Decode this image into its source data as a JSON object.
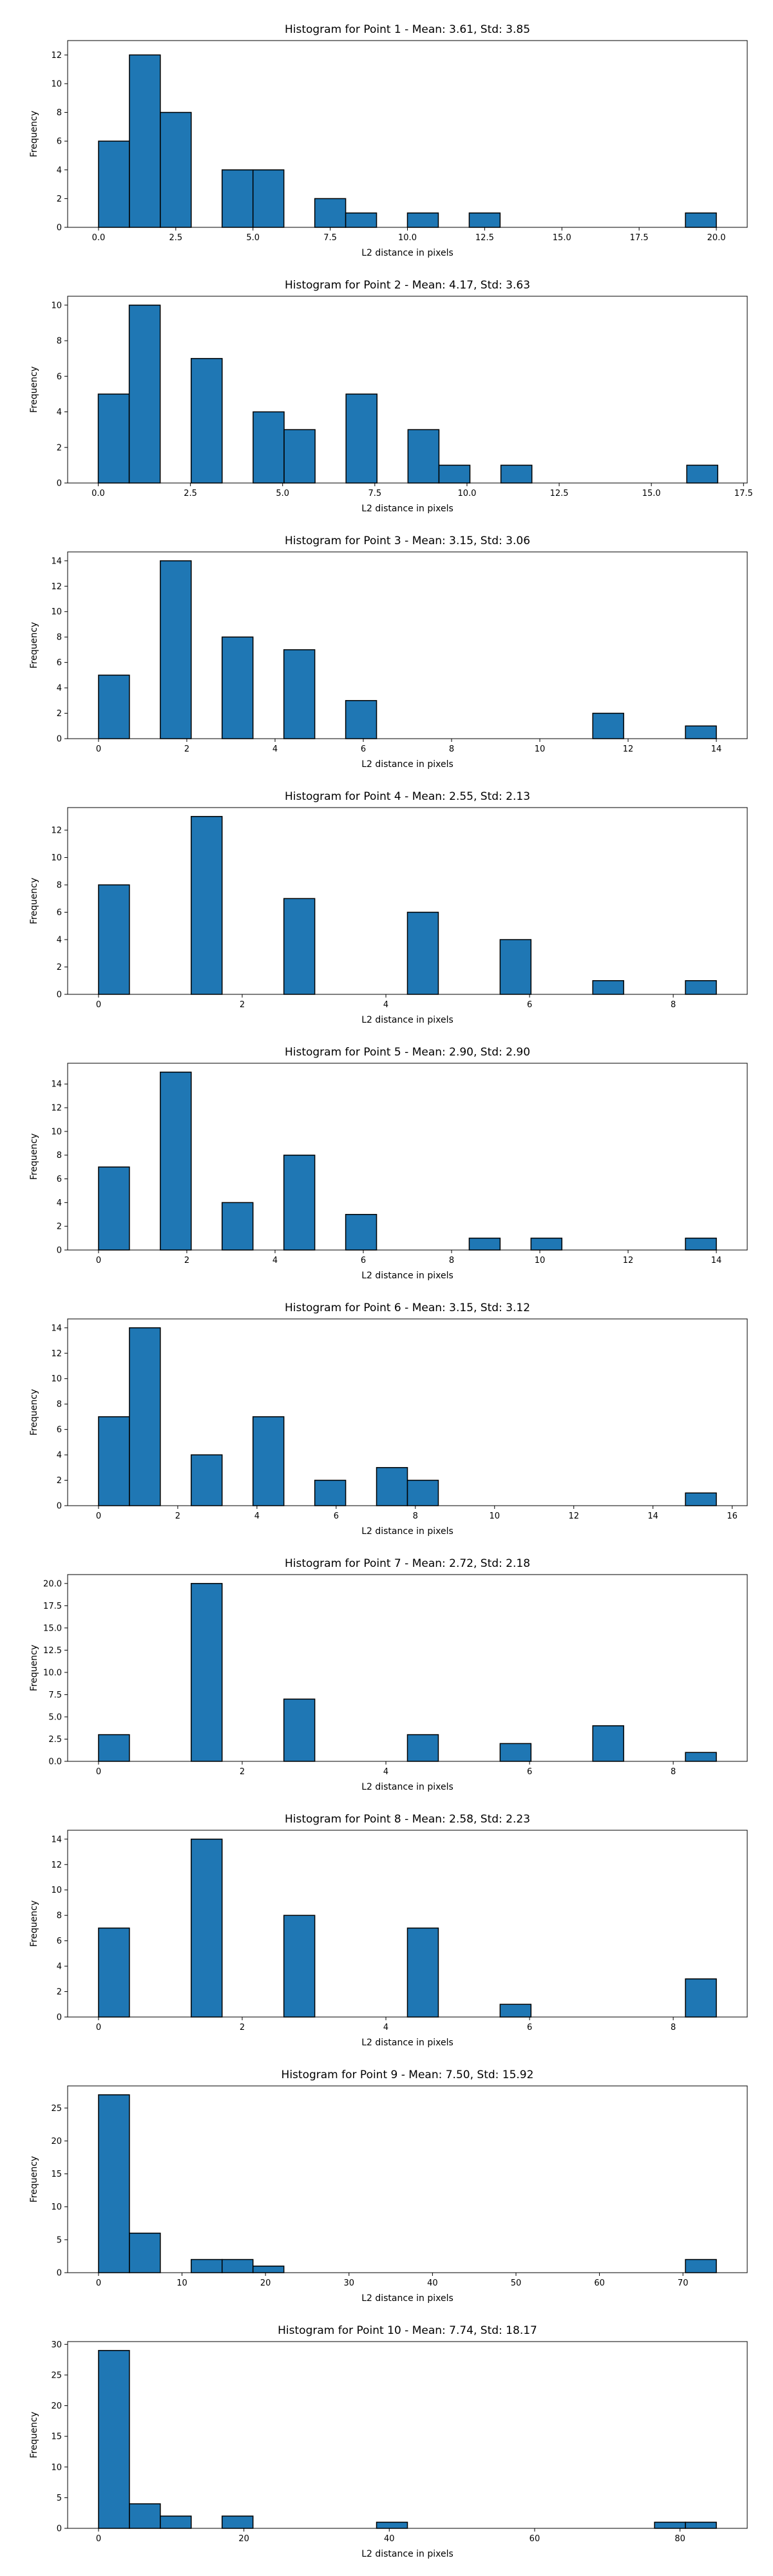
{
  "figure": {
    "bar_color": "#1f77b4",
    "edge_color": "#000000"
  },
  "chart_data": [
    {
      "type": "bar",
      "title": "Histogram for Point 1 - Mean: 3.61, Std: 3.85",
      "xlabel": "L2 distance in pixels",
      "ylabel": "Frequency",
      "xlim": [
        -1.0,
        21.0
      ],
      "ylim": [
        0,
        13
      ],
      "xticks": [
        0,
        2.5,
        5,
        7.5,
        10,
        12.5,
        15,
        17.5,
        20
      ],
      "xtick_labels": [
        "0.0",
        "2.5",
        "5.0",
        "7.5",
        "10.0",
        "12.5",
        "15.0",
        "17.5",
        "20.0"
      ],
      "yticks": [
        0,
        2,
        4,
        6,
        8,
        10,
        12
      ],
      "ytick_labels": [
        "0",
        "2",
        "4",
        "6",
        "8",
        "10",
        "12"
      ],
      "bins": [
        {
          "x0": 0,
          "x1": 1,
          "count": 6
        },
        {
          "x0": 1,
          "x1": 2,
          "count": 12
        },
        {
          "x0": 2,
          "x1": 3,
          "count": 8
        },
        {
          "x0": 4,
          "x1": 5,
          "count": 4
        },
        {
          "x0": 5,
          "x1": 6,
          "count": 4
        },
        {
          "x0": 7,
          "x1": 8,
          "count": 2
        },
        {
          "x0": 8,
          "x1": 9,
          "count": 1
        },
        {
          "x0": 10,
          "x1": 11,
          "count": 1
        },
        {
          "x0": 12,
          "x1": 13,
          "count": 1
        },
        {
          "x0": 19,
          "x1": 20,
          "count": 1
        }
      ]
    },
    {
      "type": "bar",
      "title": "Histogram for Point 2 - Mean: 4.17, Std: 3.63",
      "xlabel": "L2 distance in pixels",
      "ylabel": "Frequency",
      "xlim": [
        -0.83,
        17.6
      ],
      "ylim": [
        0,
        10.5
      ],
      "xticks": [
        0,
        2.5,
        5,
        7.5,
        10,
        12.5,
        15,
        17.5
      ],
      "xtick_labels": [
        "0.0",
        "2.5",
        "5.0",
        "7.5",
        "10.0",
        "12.5",
        "15.0",
        "17.5"
      ],
      "yticks": [
        0,
        2,
        4,
        6,
        8,
        10
      ],
      "ytick_labels": [
        "0",
        "2",
        "4",
        "6",
        "8",
        "10"
      ],
      "bins": [
        {
          "x0": 0,
          "x1": 0.84,
          "count": 5
        },
        {
          "x0": 0.84,
          "x1": 1.68,
          "count": 10
        },
        {
          "x0": 2.52,
          "x1": 3.36,
          "count": 7
        },
        {
          "x0": 4.2,
          "x1": 5.04,
          "count": 4
        },
        {
          "x0": 5.04,
          "x1": 5.88,
          "count": 3
        },
        {
          "x0": 6.72,
          "x1": 7.56,
          "count": 5
        },
        {
          "x0": 8.4,
          "x1": 9.24,
          "count": 3
        },
        {
          "x0": 9.24,
          "x1": 10.08,
          "count": 1
        },
        {
          "x0": 10.92,
          "x1": 11.76,
          "count": 1
        },
        {
          "x0": 15.96,
          "x1": 16.8,
          "count": 1
        }
      ]
    },
    {
      "type": "bar",
      "title": "Histogram for Point 3 - Mean: 3.15, Std: 3.06",
      "xlabel": "L2 distance in pixels",
      "ylabel": "Frequency",
      "xlim": [
        -0.7,
        14.7
      ],
      "ylim": [
        0,
        14.7
      ],
      "xticks": [
        0,
        2,
        4,
        6,
        8,
        10,
        12,
        14
      ],
      "xtick_labels": [
        "0",
        "2",
        "4",
        "6",
        "8",
        "10",
        "12",
        "14"
      ],
      "yticks": [
        0,
        2,
        4,
        6,
        8,
        10,
        12,
        14
      ],
      "ytick_labels": [
        "0",
        "2",
        "4",
        "6",
        "8",
        "10",
        "12",
        "14"
      ],
      "bins": [
        {
          "x0": 0,
          "x1": 0.7,
          "count": 5
        },
        {
          "x0": 1.4,
          "x1": 2.1,
          "count": 14
        },
        {
          "x0": 2.8,
          "x1": 3.5,
          "count": 8
        },
        {
          "x0": 4.2,
          "x1": 4.9,
          "count": 7
        },
        {
          "x0": 5.6,
          "x1": 6.3,
          "count": 3
        },
        {
          "x0": 11.2,
          "x1": 11.9,
          "count": 2
        },
        {
          "x0": 13.3,
          "x1": 14,
          "count": 1
        }
      ]
    },
    {
      "type": "bar",
      "title": "Histogram for Point 4 - Mean: 2.55, Std: 2.13",
      "xlabel": "L2 distance in pixels",
      "ylabel": "Frequency",
      "xlim": [
        -0.43,
        9.03
      ],
      "ylim": [
        0,
        13.65
      ],
      "xticks": [
        0,
        2,
        4,
        6,
        8
      ],
      "xtick_labels": [
        "0",
        "2",
        "4",
        "6",
        "8"
      ],
      "yticks": [
        0,
        2,
        4,
        6,
        8,
        10,
        12
      ],
      "ytick_labels": [
        "0",
        "2",
        "4",
        "6",
        "8",
        "10",
        "12"
      ],
      "bins": [
        {
          "x0": 0,
          "x1": 0.43,
          "count": 8
        },
        {
          "x0": 1.29,
          "x1": 1.72,
          "count": 13
        },
        {
          "x0": 2.58,
          "x1": 3.01,
          "count": 7
        },
        {
          "x0": 4.3,
          "x1": 4.73,
          "count": 6
        },
        {
          "x0": 5.59,
          "x1": 6.02,
          "count": 4
        },
        {
          "x0": 6.88,
          "x1": 7.31,
          "count": 1
        },
        {
          "x0": 8.17,
          "x1": 8.6,
          "count": 1
        }
      ]
    },
    {
      "type": "bar",
      "title": "Histogram for Point 5 - Mean: 2.90, Std: 2.90",
      "xlabel": "L2 distance in pixels",
      "ylabel": "Frequency",
      "xlim": [
        -0.7,
        14.7
      ],
      "ylim": [
        0,
        15.75
      ],
      "xticks": [
        0,
        2,
        4,
        6,
        8,
        10,
        12,
        14
      ],
      "xtick_labels": [
        "0",
        "2",
        "4",
        "6",
        "8",
        "10",
        "12",
        "14"
      ],
      "yticks": [
        0,
        2,
        4,
        6,
        8,
        10,
        12,
        14
      ],
      "ytick_labels": [
        "0",
        "2",
        "4",
        "6",
        "8",
        "10",
        "12",
        "14"
      ],
      "bins": [
        {
          "x0": 0,
          "x1": 0.7,
          "count": 7
        },
        {
          "x0": 1.4,
          "x1": 2.1,
          "count": 15
        },
        {
          "x0": 2.8,
          "x1": 3.5,
          "count": 4
        },
        {
          "x0": 4.2,
          "x1": 4.9,
          "count": 8
        },
        {
          "x0": 5.6,
          "x1": 6.3,
          "count": 3
        },
        {
          "x0": 8.4,
          "x1": 9.1,
          "count": 1
        },
        {
          "x0": 9.8,
          "x1": 10.5,
          "count": 1
        },
        {
          "x0": 13.3,
          "x1": 14,
          "count": 1
        }
      ]
    },
    {
      "type": "bar",
      "title": "Histogram for Point 6 - Mean: 3.15, Std: 3.12",
      "xlabel": "L2 distance in pixels",
      "ylabel": "Frequency",
      "xlim": [
        -0.78,
        16.38
      ],
      "ylim": [
        0,
        14.7
      ],
      "xticks": [
        0,
        2,
        4,
        6,
        8,
        10,
        12,
        14,
        16
      ],
      "xtick_labels": [
        "0",
        "2",
        "4",
        "6",
        "8",
        "10",
        "12",
        "14",
        "16"
      ],
      "yticks": [
        0,
        2,
        4,
        6,
        8,
        10,
        12,
        14
      ],
      "ytick_labels": [
        "0",
        "2",
        "4",
        "6",
        "8",
        "10",
        "12",
        "14"
      ],
      "bins": [
        {
          "x0": 0,
          "x1": 0.78,
          "count": 7
        },
        {
          "x0": 0.78,
          "x1": 1.56,
          "count": 14
        },
        {
          "x0": 2.34,
          "x1": 3.12,
          "count": 4
        },
        {
          "x0": 3.9,
          "x1": 4.68,
          "count": 7
        },
        {
          "x0": 5.46,
          "x1": 6.24,
          "count": 2
        },
        {
          "x0": 7.02,
          "x1": 7.8,
          "count": 3
        },
        {
          "x0": 7.8,
          "x1": 8.58,
          "count": 2
        },
        {
          "x0": 14.82,
          "x1": 15.6,
          "count": 1
        }
      ]
    },
    {
      "type": "bar",
      "title": "Histogram for Point 7 - Mean: 2.72, Std: 2.18",
      "xlabel": "L2 distance in pixels",
      "ylabel": "Frequency",
      "xlim": [
        -0.43,
        9.03
      ],
      "ylim": [
        0,
        21
      ],
      "xticks": [
        0,
        2,
        4,
        6,
        8
      ],
      "xtick_labels": [
        "0",
        "2",
        "4",
        "6",
        "8"
      ],
      "yticks": [
        0,
        2.5,
        5,
        7.5,
        10,
        12.5,
        15,
        17.5,
        20
      ],
      "ytick_labels": [
        "0.0",
        "2.5",
        "5.0",
        "7.5",
        "10.0",
        "12.5",
        "15.0",
        "17.5",
        "20.0"
      ],
      "bins": [
        {
          "x0": 0,
          "x1": 0.43,
          "count": 3
        },
        {
          "x0": 1.29,
          "x1": 1.72,
          "count": 20
        },
        {
          "x0": 2.58,
          "x1": 3.01,
          "count": 7
        },
        {
          "x0": 4.3,
          "x1": 4.73,
          "count": 3
        },
        {
          "x0": 5.59,
          "x1": 6.02,
          "count": 2
        },
        {
          "x0": 6.88,
          "x1": 7.31,
          "count": 4
        },
        {
          "x0": 8.17,
          "x1": 8.6,
          "count": 1
        }
      ]
    },
    {
      "type": "bar",
      "title": "Histogram for Point 8 - Mean: 2.58, Std: 2.23",
      "xlabel": "L2 distance in pixels",
      "ylabel": "Frequency",
      "xlim": [
        -0.43,
        9.03
      ],
      "ylim": [
        0,
        14.7
      ],
      "xticks": [
        0,
        2,
        4,
        6,
        8
      ],
      "xtick_labels": [
        "0",
        "2",
        "4",
        "6",
        "8"
      ],
      "yticks": [
        0,
        2,
        4,
        6,
        8,
        10,
        12,
        14
      ],
      "ytick_labels": [
        "0",
        "2",
        "4",
        "6",
        "8",
        "10",
        "12",
        "14"
      ],
      "bins": [
        {
          "x0": 0,
          "x1": 0.43,
          "count": 7
        },
        {
          "x0": 1.29,
          "x1": 1.72,
          "count": 14
        },
        {
          "x0": 2.58,
          "x1": 3.01,
          "count": 8
        },
        {
          "x0": 4.3,
          "x1": 4.73,
          "count": 7
        },
        {
          "x0": 5.59,
          "x1": 6.02,
          "count": 1
        },
        {
          "x0": 8.17,
          "x1": 8.6,
          "count": 3
        }
      ]
    },
    {
      "type": "bar",
      "title": "Histogram for Point 9 - Mean: 7.50, Std: 15.92",
      "xlabel": "L2 distance in pixels",
      "ylabel": "Frequency",
      "xlim": [
        -3.7,
        77.7
      ],
      "ylim": [
        0,
        28.35
      ],
      "xticks": [
        0,
        10,
        20,
        30,
        40,
        50,
        60,
        70
      ],
      "xtick_labels": [
        "0",
        "10",
        "20",
        "30",
        "40",
        "50",
        "60",
        "70"
      ],
      "yticks": [
        0,
        5,
        10,
        15,
        20,
        25
      ],
      "ytick_labels": [
        "0",
        "5",
        "10",
        "15",
        "20",
        "25"
      ],
      "bins": [
        {
          "x0": 0,
          "x1": 3.7,
          "count": 27
        },
        {
          "x0": 3.7,
          "x1": 7.4,
          "count": 6
        },
        {
          "x0": 11.1,
          "x1": 14.8,
          "count": 2
        },
        {
          "x0": 14.8,
          "x1": 18.5,
          "count": 2
        },
        {
          "x0": 18.5,
          "x1": 22.2,
          "count": 1
        },
        {
          "x0": 70.3,
          "x1": 74,
          "count": 2
        }
      ]
    },
    {
      "type": "bar",
      "title": "Histogram for Point 10 - Mean: 7.74, Std: 18.17",
      "xlabel": "L2 distance in pixels",
      "ylabel": "Frequency",
      "xlim": [
        -4.25,
        89.25
      ],
      "ylim": [
        0,
        30.45
      ],
      "xticks": [
        0,
        20,
        40,
        60,
        80
      ],
      "xtick_labels": [
        "0",
        "20",
        "40",
        "60",
        "80"
      ],
      "yticks": [
        0,
        5,
        10,
        15,
        20,
        25,
        30
      ],
      "ytick_labels": [
        "0",
        "5",
        "10",
        "15",
        "20",
        "25",
        "30"
      ],
      "bins": [
        {
          "x0": 0,
          "x1": 4.25,
          "count": 29
        },
        {
          "x0": 4.25,
          "x1": 8.5,
          "count": 4
        },
        {
          "x0": 8.5,
          "x1": 12.75,
          "count": 2
        },
        {
          "x0": 17,
          "x1": 21.25,
          "count": 2
        },
        {
          "x0": 38.25,
          "x1": 42.5,
          "count": 1
        },
        {
          "x0": 76.5,
          "x1": 80.75,
          "count": 1
        },
        {
          "x0": 80.75,
          "x1": 85,
          "count": 1
        }
      ]
    }
  ]
}
